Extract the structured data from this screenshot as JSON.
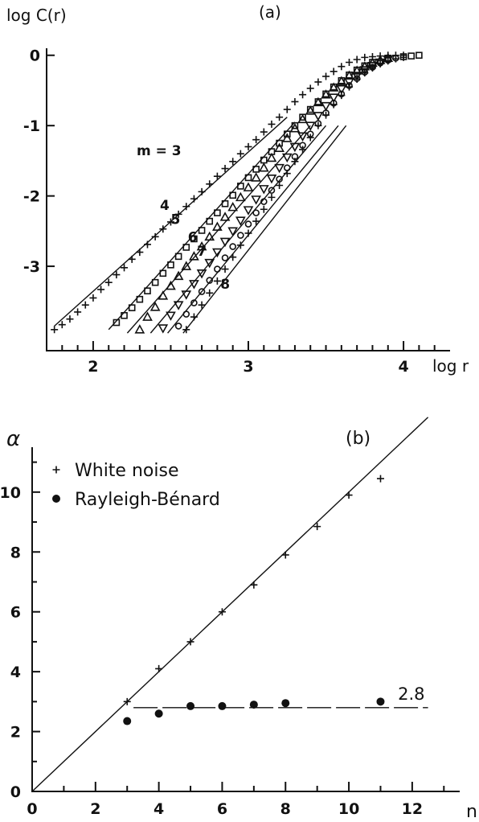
{
  "chart_data": [
    {
      "panel": "a",
      "type": "scatter",
      "title": "(a)",
      "xlabel": "log r",
      "ylabel": "log C(r)",
      "xlim": [
        1.7,
        4.3
      ],
      "ylim": [
        -4.2,
        0.1
      ],
      "x_ticks": [
        "2",
        "3",
        "4"
      ],
      "y_ticks": [
        "0",
        "-1",
        "-2",
        "-3"
      ],
      "series": [
        {
          "name": "m = 3",
          "marker": "plus",
          "x": [
            1.75,
            1.8,
            1.85,
            1.9,
            1.95,
            2.0,
            2.05,
            2.1,
            2.15,
            2.2,
            2.25,
            2.3,
            2.35,
            2.4,
            2.45,
            2.5,
            2.55,
            2.6,
            2.65,
            2.7,
            2.75,
            2.8,
            2.85,
            2.9,
            2.95,
            3.0,
            3.05,
            3.1,
            3.15,
            3.2,
            3.25,
            3.3,
            3.35,
            3.4,
            3.45,
            3.5,
            3.55,
            3.6,
            3.65,
            3.7,
            3.75,
            3.8,
            3.85,
            3.9,
            3.95,
            4.0
          ],
          "y": [
            -3.9,
            -3.83,
            -3.75,
            -3.65,
            -3.55,
            -3.45,
            -3.33,
            -3.23,
            -3.12,
            -3.02,
            -2.9,
            -2.8,
            -2.69,
            -2.58,
            -2.47,
            -2.37,
            -2.26,
            -2.15,
            -2.04,
            -1.94,
            -1.83,
            -1.72,
            -1.61,
            -1.51,
            -1.4,
            -1.3,
            -1.2,
            -1.09,
            -0.98,
            -0.88,
            -0.77,
            -0.66,
            -0.56,
            -0.47,
            -0.38,
            -0.3,
            -0.23,
            -0.16,
            -0.1,
            -0.06,
            -0.03,
            -0.02,
            -0.01,
            0.0,
            0.0,
            0.0
          ]
        },
        {
          "name": "4",
          "marker": "square",
          "x": [
            2.15,
            2.2,
            2.25,
            2.3,
            2.35,
            2.4,
            2.45,
            2.5,
            2.55,
            2.6,
            2.65,
            2.7,
            2.75,
            2.8,
            2.85,
            2.9,
            2.95,
            3.0,
            3.05,
            3.1,
            3.15,
            3.2,
            3.25,
            3.3,
            3.35,
            3.4,
            3.45,
            3.5,
            3.55,
            3.6,
            3.65,
            3.7,
            3.75,
            3.8,
            3.9,
            4.0,
            4.05,
            4.1
          ],
          "y": [
            -3.8,
            -3.7,
            -3.59,
            -3.47,
            -3.35,
            -3.23,
            -3.1,
            -2.98,
            -2.86,
            -2.73,
            -2.61,
            -2.49,
            -2.36,
            -2.24,
            -2.11,
            -1.99,
            -1.86,
            -1.74,
            -1.62,
            -1.49,
            -1.37,
            -1.25,
            -1.12,
            -1.0,
            -0.88,
            -0.77,
            -0.66,
            -0.55,
            -0.45,
            -0.36,
            -0.28,
            -0.21,
            -0.15,
            -0.1,
            -0.05,
            -0.02,
            -0.01,
            0.0
          ]
        },
        {
          "name": "5",
          "marker": "triangle",
          "x": [
            2.3,
            2.35,
            2.4,
            2.45,
            2.5,
            2.55,
            2.6,
            2.65,
            2.7,
            2.75,
            2.8,
            2.85,
            2.9,
            2.95,
            3.0,
            3.05,
            3.1,
            3.15,
            3.2,
            3.25,
            3.3,
            3.35,
            3.4,
            3.45,
            3.5,
            3.55,
            3.6,
            3.65,
            3.7,
            3.75,
            3.8,
            3.85,
            3.9
          ],
          "y": [
            -3.9,
            -3.72,
            -3.58,
            -3.42,
            -3.28,
            -3.14,
            -3.0,
            -2.86,
            -2.72,
            -2.58,
            -2.44,
            -2.3,
            -2.16,
            -2.02,
            -1.88,
            -1.74,
            -1.6,
            -1.46,
            -1.32,
            -1.18,
            -1.04,
            -0.91,
            -0.79,
            -0.67,
            -0.56,
            -0.46,
            -0.37,
            -0.29,
            -0.22,
            -0.16,
            -0.11,
            -0.07,
            -0.04
          ]
        },
        {
          "name": "6",
          "marker": "triangle-down",
          "x": [
            2.45,
            2.5,
            2.55,
            2.6,
            2.65,
            2.7,
            2.75,
            2.8,
            2.85,
            2.9,
            2.95,
            3.0,
            3.05,
            3.1,
            3.15,
            3.2,
            3.25,
            3.3,
            3.35,
            3.4,
            3.45,
            3.5,
            3.55,
            3.6,
            3.65,
            3.7,
            3.75,
            3.8,
            3.85,
            3.9
          ],
          "y": [
            -3.88,
            -3.7,
            -3.55,
            -3.4,
            -3.25,
            -3.1,
            -2.95,
            -2.8,
            -2.65,
            -2.5,
            -2.35,
            -2.2,
            -2.05,
            -1.9,
            -1.75,
            -1.6,
            -1.45,
            -1.3,
            -1.15,
            -1.0,
            -0.86,
            -0.72,
            -0.6,
            -0.48,
            -0.38,
            -0.29,
            -0.21,
            -0.15,
            -0.1,
            -0.06
          ]
        },
        {
          "name": "7",
          "marker": "circle",
          "x": [
            2.55,
            2.6,
            2.65,
            2.7,
            2.75,
            2.8,
            2.85,
            2.9,
            2.95,
            3.0,
            3.05,
            3.1,
            3.15,
            3.2,
            3.25,
            3.3,
            3.35,
            3.4,
            3.45,
            3.5,
            3.55,
            3.6,
            3.65,
            3.7,
            3.75,
            3.8,
            3.85,
            3.9,
            3.95
          ],
          "y": [
            -3.85,
            -3.68,
            -3.52,
            -3.36,
            -3.2,
            -3.04,
            -2.88,
            -2.72,
            -2.56,
            -2.4,
            -2.24,
            -2.08,
            -1.92,
            -1.76,
            -1.6,
            -1.44,
            -1.28,
            -1.12,
            -0.97,
            -0.82,
            -0.68,
            -0.55,
            -0.43,
            -0.33,
            -0.24,
            -0.17,
            -0.11,
            -0.07,
            -0.04
          ]
        },
        {
          "name": "8",
          "marker": "plus",
          "x": [
            2.6,
            2.65,
            2.7,
            2.75,
            2.8,
            2.85,
            2.9,
            2.95,
            3.0,
            3.05,
            3.1,
            3.15,
            3.2,
            3.25,
            3.3,
            3.35,
            3.4,
            3.45,
            3.5,
            3.55,
            3.6,
            3.65,
            3.7,
            3.75,
            3.8,
            3.85,
            3.9,
            3.95,
            4.0
          ],
          "y": [
            -3.9,
            -3.72,
            -3.55,
            -3.38,
            -3.21,
            -3.04,
            -2.87,
            -2.7,
            -2.53,
            -2.36,
            -2.19,
            -2.02,
            -1.85,
            -1.68,
            -1.51,
            -1.34,
            -1.17,
            -1.0,
            -0.85,
            -0.7,
            -0.57,
            -0.45,
            -0.34,
            -0.25,
            -0.18,
            -0.12,
            -0.08,
            -0.05,
            -0.03
          ]
        }
      ],
      "fit_lines": [
        {
          "x": [
            1.75,
            3.25
          ],
          "y": [
            -3.85,
            -0.88
          ]
        },
        {
          "x": [
            2.1,
            3.3
          ],
          "y": [
            -3.9,
            -0.95
          ]
        },
        {
          "x": [
            2.22,
            3.4
          ],
          "y": [
            -3.95,
            -1.0
          ]
        },
        {
          "x": [
            2.37,
            3.5
          ],
          "y": [
            -3.95,
            -1.0
          ]
        },
        {
          "x": [
            2.48,
            3.58
          ],
          "y": [
            -3.95,
            -1.0
          ]
        },
        {
          "x": [
            2.58,
            3.63
          ],
          "y": [
            -3.95,
            -1.0
          ]
        }
      ]
    },
    {
      "panel": "b",
      "type": "scatter",
      "title": "(b)",
      "xlabel": "n",
      "ylabel": "α",
      "xlim": [
        0,
        13.5
      ],
      "ylim": [
        0,
        11.5
      ],
      "x_ticks": [
        "0",
        "2",
        "4",
        "6",
        "8",
        "10",
        "12"
      ],
      "y_ticks": [
        "0",
        "2",
        "4",
        "6",
        "8",
        "10"
      ],
      "series": [
        {
          "name": "White noise",
          "marker": "plus",
          "x": [
            3,
            4,
            5,
            6,
            7,
            8,
            9,
            10,
            11
          ],
          "y": [
            3.0,
            4.1,
            5.0,
            6.0,
            6.9,
            7.9,
            8.85,
            9.9,
            10.45
          ]
        },
        {
          "name": "Rayleigh-Bénard",
          "marker": "dot",
          "x": [
            3,
            4,
            5,
            6,
            7,
            8,
            11
          ],
          "y": [
            2.35,
            2.6,
            2.85,
            2.85,
            2.9,
            2.95,
            3.0
          ]
        }
      ],
      "reference_line": {
        "x": [
          0,
          12.5
        ],
        "y": [
          0,
          12.5
        ]
      },
      "asymptote": {
        "value": 2.8,
        "label": "2.8",
        "x_start": 3.2,
        "x_end": 12.5
      }
    }
  ]
}
